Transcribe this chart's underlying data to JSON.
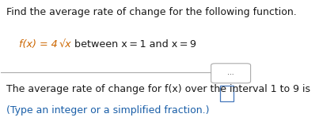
{
  "title_text": "Find the average rate of change for the following function.",
  "formula_orange": "f(x) = 4",
  "formula_sqrt": "√x",
  "formula_rest": " between x = 1 and x = 9",
  "bottom_line1": "The average rate of change for f(x) over the interval 1 to 9 is",
  "bottom_line2": "(Type an integer or a simplified fraction.)",
  "title_color": "#1a1a1a",
  "formula_color": "#cc6600",
  "body_color": "#1a1a1a",
  "blue_color": "#1a5fa8",
  "bg_color": "#ffffff",
  "divider_color": "#aaaaaa",
  "box_color": "#4477bb",
  "dots_text": "..."
}
